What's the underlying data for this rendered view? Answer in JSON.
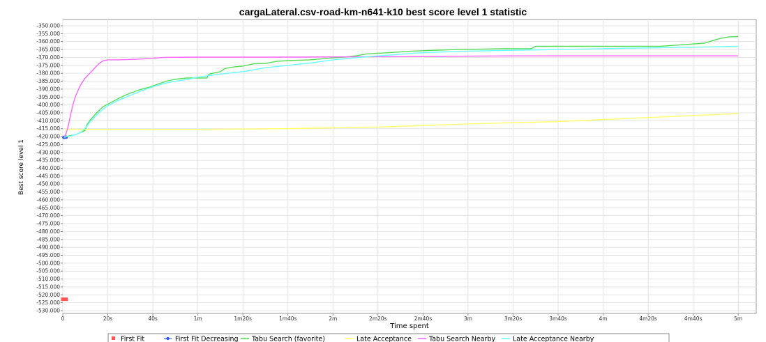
{
  "chart_data": {
    "type": "line",
    "title": "cargaLateral.csv-road-km-n641-k10 best score level 1 statistic",
    "xlabel": "Time spent",
    "ylabel": "Best score level 1",
    "x_ticks": [
      {
        "v": 0,
        "label": "0"
      },
      {
        "v": 20,
        "label": "20s"
      },
      {
        "v": 40,
        "label": "40s"
      },
      {
        "v": 60,
        "label": "1m"
      },
      {
        "v": 80,
        "label": "1m20s"
      },
      {
        "v": 100,
        "label": "1m40s"
      },
      {
        "v": 120,
        "label": "2m"
      },
      {
        "v": 140,
        "label": "2m20s"
      },
      {
        "v": 160,
        "label": "2m40s"
      },
      {
        "v": 180,
        "label": "3m"
      },
      {
        "v": 200,
        "label": "3m20s"
      },
      {
        "v": 220,
        "label": "3m40s"
      },
      {
        "v": 240,
        "label": "4m"
      },
      {
        "v": 260,
        "label": "4m20s"
      },
      {
        "v": 280,
        "label": "4m40s"
      },
      {
        "v": 300,
        "label": "5m"
      }
    ],
    "xlim": [
      0,
      308
    ],
    "ylim": [
      -530000,
      -350000
    ],
    "y_ticks": [
      "-350.000",
      "-355.000",
      "-360.000",
      "-365.000",
      "-370.000",
      "-375.000",
      "-380.000",
      "-385.000",
      "-390.000",
      "-395.000",
      "-400.000",
      "-405.000",
      "-410.000",
      "-415.000",
      "-420.000",
      "-425.000",
      "-430.000",
      "-435.000",
      "-440.000",
      "-445.000",
      "-450.000",
      "-455.000",
      "-460.000",
      "-465.000",
      "-470.000",
      "-475.000",
      "-480.000",
      "-485.000",
      "-490.000",
      "-495.000",
      "-500.000",
      "-505.000",
      "-510.000",
      "-515.000",
      "-520.000",
      "-525.000",
      "-530.000"
    ],
    "grid": true,
    "legend_position": "bottom",
    "series": [
      {
        "name": "First Fit",
        "color": "#ff5555",
        "marker": "square",
        "points": [
          [
            0,
            -522800
          ],
          [
            1.5,
            -522800
          ]
        ]
      },
      {
        "name": "First Fit Decreasing",
        "color": "#3355ff",
        "marker": "circle",
        "points": [
          [
            0.5,
            -420500
          ],
          [
            1.5,
            -420400
          ]
        ]
      },
      {
        "name": "Tabu Search (favorite)",
        "color": "#55dd55",
        "marker": "line",
        "points": [
          [
            1,
            -420000
          ],
          [
            3,
            -419500
          ],
          [
            5,
            -419000
          ],
          [
            8,
            -417500
          ],
          [
            10,
            -416000
          ],
          [
            10.5,
            -413000
          ],
          [
            12,
            -410000
          ],
          [
            15,
            -405000
          ],
          [
            18,
            -401000
          ],
          [
            22,
            -398000
          ],
          [
            26,
            -395000
          ],
          [
            30,
            -392500
          ],
          [
            34,
            -390500
          ],
          [
            38,
            -389000
          ],
          [
            42,
            -387000
          ],
          [
            46,
            -385000
          ],
          [
            50,
            -383800
          ],
          [
            55,
            -383000
          ],
          [
            60,
            -383000
          ],
          [
            64,
            -383000
          ],
          [
            65,
            -380500
          ],
          [
            70,
            -379000
          ],
          [
            72,
            -377000
          ],
          [
            76,
            -376000
          ],
          [
            80,
            -375500
          ],
          [
            85,
            -374000
          ],
          [
            90,
            -373800
          ],
          [
            95,
            -372500
          ],
          [
            100,
            -372000
          ],
          [
            110,
            -371500
          ],
          [
            118,
            -370500
          ],
          [
            125,
            -369800
          ],
          [
            130,
            -369000
          ],
          [
            135,
            -367800
          ],
          [
            145,
            -367000
          ],
          [
            155,
            -366000
          ],
          [
            165,
            -365500
          ],
          [
            175,
            -365000
          ],
          [
            185,
            -364800
          ],
          [
            195,
            -364500
          ],
          [
            208,
            -364500
          ],
          [
            210,
            -363000
          ],
          [
            220,
            -363000
          ],
          [
            240,
            -363000
          ],
          [
            265,
            -363000
          ],
          [
            275,
            -362000
          ],
          [
            285,
            -361000
          ],
          [
            292,
            -358000
          ],
          [
            296,
            -357000
          ],
          [
            300,
            -356800
          ]
        ]
      },
      {
        "name": "Late Acceptance",
        "color": "#ffff66",
        "marker": "line",
        "points": [
          [
            1,
            -415500
          ],
          [
            20,
            -415500
          ],
          [
            60,
            -415500
          ],
          [
            100,
            -415000
          ],
          [
            140,
            -414000
          ],
          [
            180,
            -412000
          ],
          [
            220,
            -410500
          ],
          [
            260,
            -408000
          ],
          [
            300,
            -405500
          ]
        ]
      },
      {
        "name": "Tabu Search Nearby",
        "color": "#ff66ff",
        "marker": "line",
        "points": [
          [
            0.5,
            -420500
          ],
          [
            1.5,
            -418000
          ],
          [
            2.5,
            -413000
          ],
          [
            3.5,
            -406000
          ],
          [
            4.5,
            -400000
          ],
          [
            5.5,
            -395000
          ],
          [
            7,
            -390000
          ],
          [
            8.5,
            -386000
          ],
          [
            10,
            -383000
          ],
          [
            12,
            -380000
          ],
          [
            14,
            -377000
          ],
          [
            16,
            -374000
          ],
          [
            18,
            -372000
          ],
          [
            20,
            -371500
          ],
          [
            25,
            -371500
          ],
          [
            35,
            -371000
          ],
          [
            45,
            -370000
          ],
          [
            60,
            -369800
          ],
          [
            100,
            -369800
          ],
          [
            150,
            -369500
          ],
          [
            200,
            -369000
          ],
          [
            300,
            -369000
          ]
        ]
      },
      {
        "name": "Late Acceptance Nearby",
        "color": "#66ffff",
        "marker": "line",
        "points": [
          [
            0.5,
            -420500
          ],
          [
            4,
            -419500
          ],
          [
            8,
            -417500
          ],
          [
            10,
            -414500
          ],
          [
            12,
            -411000
          ],
          [
            16,
            -405000
          ],
          [
            20,
            -400500
          ],
          [
            25,
            -397000
          ],
          [
            30,
            -394000
          ],
          [
            35,
            -391000
          ],
          [
            40,
            -388500
          ],
          [
            45,
            -386500
          ],
          [
            50,
            -385000
          ],
          [
            55,
            -384000
          ],
          [
            60,
            -382500
          ],
          [
            70,
            -380500
          ],
          [
            80,
            -379000
          ],
          [
            90,
            -376500
          ],
          [
            100,
            -375000
          ],
          [
            110,
            -373500
          ],
          [
            120,
            -371500
          ],
          [
            140,
            -369000
          ],
          [
            160,
            -367000
          ],
          [
            180,
            -366000
          ],
          [
            200,
            -365500
          ],
          [
            220,
            -365000
          ],
          [
            240,
            -364500
          ],
          [
            260,
            -364000
          ],
          [
            280,
            -363500
          ],
          [
            300,
            -363000
          ]
        ]
      }
    ]
  }
}
